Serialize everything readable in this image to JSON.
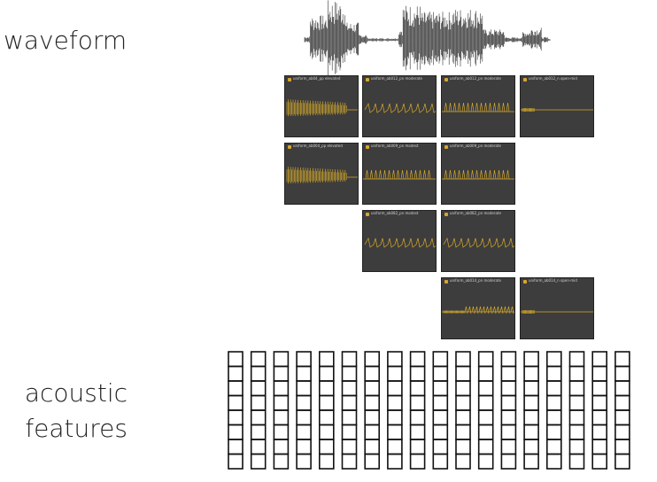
{
  "labels": {
    "waveform": "waveform",
    "acoustic_line1": "acoustic",
    "acoustic_line2": "features"
  },
  "colors": {
    "clip_background": "#3d3d3d",
    "clip_wave": "#d4a82a",
    "waveform": "#333333",
    "feature_cell": "#111111"
  },
  "clips": [
    {
      "name": "uniform_ab04_pp elevated",
      "style": "dense"
    },
    {
      "name": "uniform_ab012_pn moderate",
      "style": "zigzag"
    },
    {
      "name": "uniform_ab012_pn moderate",
      "style": "comb"
    },
    {
      "name": "uniform_ab012_n open-mid",
      "style": "flat"
    },
    {
      "name": "uniform_ab004_pp elevated",
      "style": "dense"
    },
    {
      "name": "uniform_ab009_pn modest",
      "style": "comb"
    },
    {
      "name": "uniform_ab009_pn moderate",
      "style": "comb"
    },
    {
      "name": "uniform_ab082_pn modest",
      "style": "zigzag"
    },
    {
      "name": "uniform_ab082_pn moderate",
      "style": "zigzag"
    },
    {
      "name": "uniform_ab014_pn moderate",
      "style": "burst"
    },
    {
      "name": "uniform_ab014_n open-mid",
      "style": "flat"
    }
  ],
  "features": {
    "columns": 18,
    "rows": 8
  }
}
